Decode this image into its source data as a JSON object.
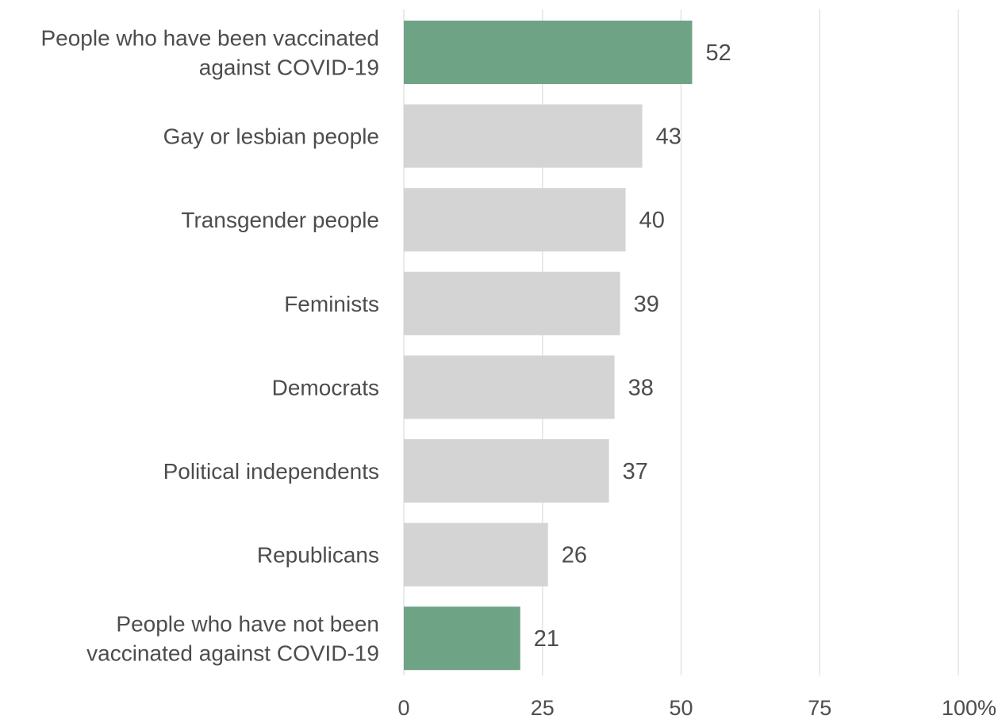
{
  "chart_data": {
    "type": "bar",
    "orientation": "horizontal",
    "title": "",
    "xlabel": "",
    "ylabel": "",
    "categories": [
      "People who have been vaccinated against COVID-19",
      "Gay or lesbian people",
      "Transgender people",
      "Feminists",
      "Democrats",
      "Political independents",
      "Republicans",
      "People who have not been vaccinated against COVID-19"
    ],
    "category_label_lines": [
      [
        "People who have been vaccinated",
        "against COVID-19"
      ],
      [
        "Gay or lesbian people"
      ],
      [
        "Transgender people"
      ],
      [
        "Feminists"
      ],
      [
        "Democrats"
      ],
      [
        "Political independents"
      ],
      [
        "Republicans"
      ],
      [
        "People who have not been",
        "vaccinated against COVID-19"
      ]
    ],
    "values": [
      52,
      43,
      40,
      39,
      38,
      37,
      26,
      21
    ],
    "highlighted": [
      true,
      false,
      false,
      false,
      false,
      false,
      false,
      true
    ],
    "xlim": [
      0,
      100
    ],
    "xticks": [
      0,
      25,
      50,
      75,
      100
    ],
    "xtick_labels": [
      "0",
      "25",
      "50",
      "75",
      "100%"
    ],
    "grid": true,
    "legend": "none",
    "colors": {
      "highlight": "#6fa386",
      "default": "#d4d4d4",
      "grid": "#e3e3e3",
      "label": "#4d4d4d"
    }
  }
}
